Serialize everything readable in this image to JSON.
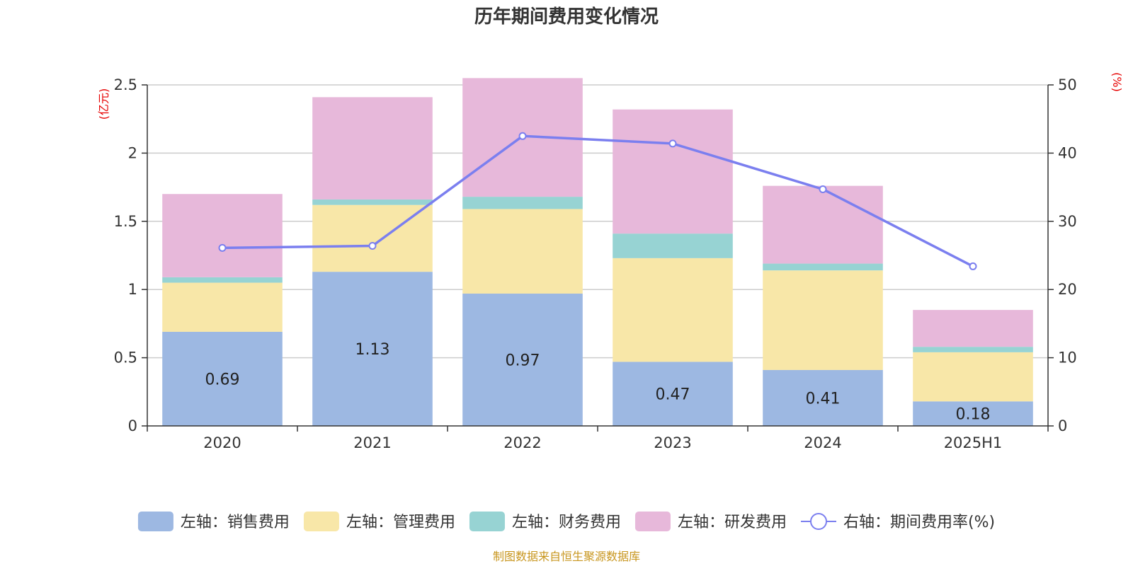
{
  "chart_data": {
    "type": "bar",
    "stacked": true,
    "title": "历年期间费用变化情况",
    "categories": [
      "2020",
      "2021",
      "2022",
      "2023",
      "2024",
      "2025H1"
    ],
    "left_axis": {
      "unit": "(亿元)",
      "ylim": [
        0,
        2.5
      ],
      "ticks": [
        "0",
        "0.5",
        "1",
        "1.5",
        "2",
        "2.5"
      ]
    },
    "right_axis": {
      "unit": "(%)",
      "ylim": [
        0,
        50
      ],
      "ticks": [
        "0",
        "10",
        "20",
        "30",
        "40",
        "50"
      ]
    },
    "grid": true,
    "legend_position": "bottom",
    "series": [
      {
        "name": "左轴：销售费用",
        "type": "bar",
        "color": "#9db8e2",
        "values": [
          0.69,
          1.13,
          0.97,
          0.47,
          0.41,
          0.18
        ],
        "show_labels": true
      },
      {
        "name": "左轴：管理费用",
        "type": "bar",
        "color": "#f8e7a8",
        "values": [
          0.36,
          0.49,
          0.62,
          0.76,
          0.73,
          0.36
        ]
      },
      {
        "name": "左轴：财务费用",
        "type": "bar",
        "color": "#97d3d3",
        "values": [
          0.04,
          0.04,
          0.09,
          0.18,
          0.05,
          0.04
        ]
      },
      {
        "name": "左轴：研发费用",
        "type": "bar",
        "color": "#e7b8da",
        "values": [
          0.61,
          0.75,
          0.87,
          0.91,
          0.57,
          0.27
        ]
      },
      {
        "name": "右轴：期间费用率(%)",
        "type": "line",
        "color": "#7b7fef",
        "values": [
          26.1,
          26.4,
          42.5,
          41.4,
          34.7,
          23.4
        ]
      }
    ]
  },
  "source_note": "制图数据来自恒生聚源数据库"
}
